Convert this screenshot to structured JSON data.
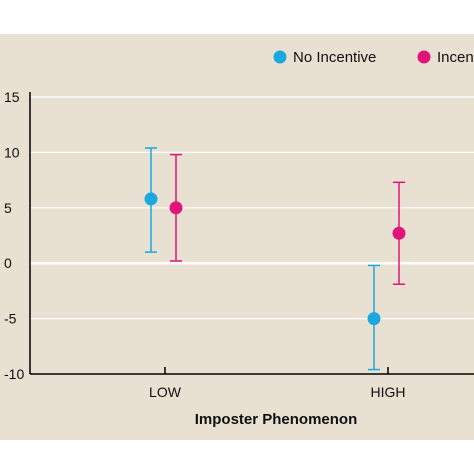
{
  "chart_data": {
    "type": "scatter",
    "categories": [
      "LOW",
      "HIGH"
    ],
    "xlabel": "Imposter Phenomenon",
    "ylabel": "",
    "ylim": [
      -10,
      15
    ],
    "yticks": [
      "15",
      "10",
      "5",
      "0",
      "-5",
      "-10"
    ],
    "grid": true,
    "legend_position": "top-right",
    "series": [
      {
        "name": "No Incentive",
        "color": "#1ba8e0",
        "values": [
          5.8,
          -5.0
        ],
        "lower": [
          1.0,
          -9.6
        ],
        "upper": [
          10.4,
          -0.2
        ]
      },
      {
        "name": "Incentive",
        "color": "#e0157a",
        "values": [
          5.0,
          2.7
        ],
        "lower": [
          0.2,
          -1.9
        ],
        "upper": [
          9.8,
          7.3
        ]
      }
    ]
  },
  "legend": {
    "items": [
      {
        "label": "No Incentive",
        "color": "#1ba8e0"
      },
      {
        "label": "Incen",
        "color": "#e0157a"
      }
    ]
  }
}
